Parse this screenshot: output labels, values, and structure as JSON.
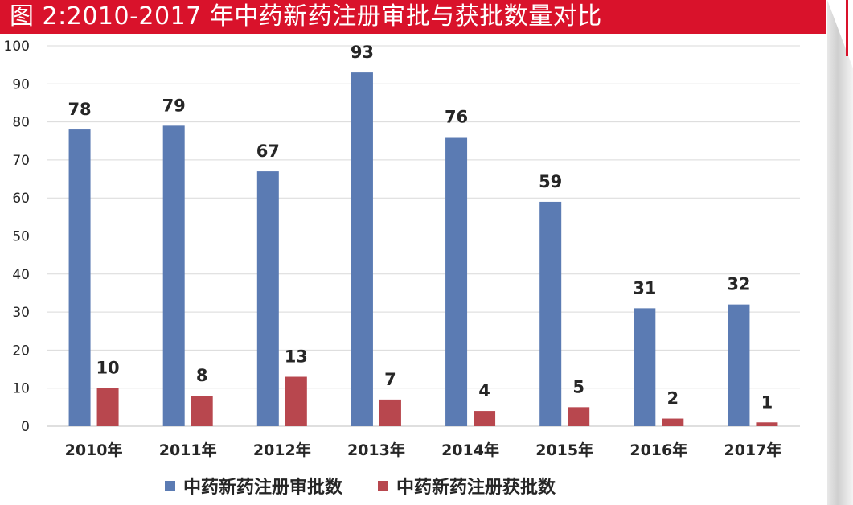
{
  "title": "图 2:2010-2017 年中药新药注册审批与获批数量对比",
  "colors": {
    "title_bar": "#d9122b",
    "series_1": "#5b7bb3",
    "series_2": "#b8474e",
    "grid": "#d9d9d9",
    "text": "#262626"
  },
  "chart_data": {
    "type": "bar",
    "categories": [
      "2010年",
      "2011年",
      "2012年",
      "2013年",
      "2014年",
      "2015年",
      "2016年",
      "2017年"
    ],
    "series": [
      {
        "name": "中药新药注册审批数",
        "values": [
          78,
          79,
          67,
          93,
          76,
          59,
          31,
          32
        ]
      },
      {
        "name": "中药新药注册获批数",
        "values": [
          10,
          8,
          13,
          7,
          4,
          5,
          2,
          1
        ]
      }
    ],
    "y_ticks": [
      "0",
      "10",
      "20",
      "30",
      "40",
      "50",
      "60",
      "70",
      "80",
      "90",
      "100"
    ],
    "ylim": [
      0,
      100
    ],
    "grid": true,
    "legend_position": "bottom",
    "data_labels": true
  }
}
